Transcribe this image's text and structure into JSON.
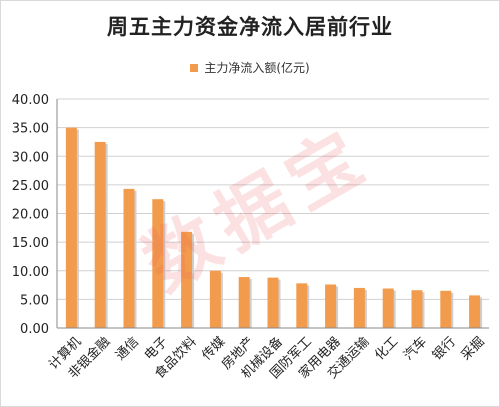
{
  "chart_data": {
    "type": "bar",
    "title": "周五主力资金净流入居前行业",
    "xlabel": "",
    "ylabel": "",
    "ylim": [
      0,
      40
    ],
    "yticks": [
      "0.00",
      "5.00",
      "10.00",
      "15.00",
      "20.00",
      "25.00",
      "30.00",
      "35.00",
      "40.00"
    ],
    "grid": true,
    "legend_position": "top",
    "categories": [
      "计算机",
      "非银金融",
      "通信",
      "电子",
      "食品饮料",
      "传媒",
      "房地产",
      "机械设备",
      "国防军工",
      "家用电器",
      "交通运输",
      "化工",
      "汽车",
      "银行",
      "采掘"
    ],
    "series": [
      {
        "name": "主力净流入额(亿元)",
        "values": [
          35.0,
          32.5,
          24.3,
          22.5,
          16.8,
          10.0,
          8.9,
          8.8,
          7.8,
          7.6,
          7.0,
          6.9,
          6.6,
          6.5,
          5.7
        ]
      }
    ],
    "colors": {
      "bar": "#f39b4d",
      "bar_shadow": "#cfcfcf",
      "grid": "#d0d0d0",
      "axis": "#888888"
    }
  },
  "watermark_text": "数据宝"
}
